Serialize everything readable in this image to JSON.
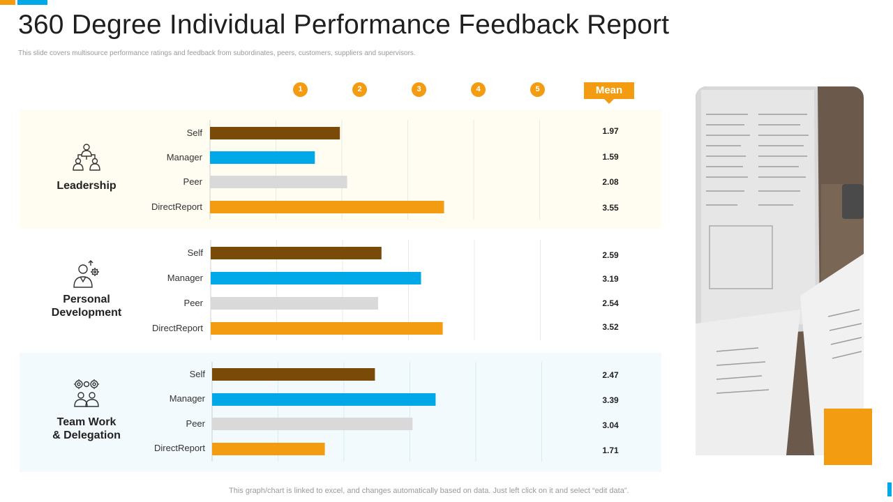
{
  "title": "360 Degree Individual Performance Feedback Report",
  "subtitle": "This slide covers multisource performance ratings and feedback from subordinates, peers, customers, suppliers and supervisors.",
  "footnote": "This graph/chart is linked to excel,  and changes automatically based on data. Just left click on it and select “edit data”.",
  "colors": {
    "accent_orange": "#f39c12",
    "accent_blue": "#00a8e8",
    "band_leadership": "#fffcf2",
    "band_team": "#f3fafd"
  },
  "chart_data": {
    "type": "bar",
    "orientation": "horizontal",
    "scale_labels": [
      "1",
      "2",
      "3",
      "4",
      "5"
    ],
    "mean_header": "Mean",
    "xlim": [
      0,
      5
    ],
    "series": [
      {
        "name": "Self",
        "color": "#7a4a08"
      },
      {
        "name": "Manager",
        "color": "#00a8e8"
      },
      {
        "name": "Peer",
        "color": "#d9d9d9"
      },
      {
        "name": "DirectReport",
        "color": "#f39c12"
      }
    ],
    "groups": [
      {
        "name": "Leadership",
        "icon": "team-leader-icon",
        "rows": [
          {
            "label": "Self",
            "value": 1.97,
            "mean": "1.97"
          },
          {
            "label": "Manager",
            "value": 1.59,
            "mean": "1.59"
          },
          {
            "label": "Peer",
            "value": 2.08,
            "mean": "2.08"
          },
          {
            "label": "DirectReport",
            "value": 3.55,
            "mean": "3.55"
          }
        ]
      },
      {
        "name": "Personal Development",
        "icon": "person-growth-icon",
        "rows": [
          {
            "label": "Self",
            "value": 2.59,
            "mean": "2.59"
          },
          {
            "label": "Manager",
            "value": 3.19,
            "mean": "3.19"
          },
          {
            "label": "Peer",
            "value": 2.54,
            "mean": "2.54"
          },
          {
            "label": "DirectReport",
            "value": 3.52,
            "mean": "3.52"
          }
        ]
      },
      {
        "name": "Team Work\n& Delegation",
        "icon": "teamwork-gears-icon",
        "rows": [
          {
            "label": "Self",
            "value": 2.47,
            "mean": "2.47"
          },
          {
            "label": "Manager",
            "value": 3.39,
            "mean": "3.39"
          },
          {
            "label": "Peer",
            "value": 3.04,
            "mean": "3.04"
          },
          {
            "label": "DirectReport",
            "value": 1.71,
            "mean": "1.71"
          }
        ]
      }
    ]
  }
}
